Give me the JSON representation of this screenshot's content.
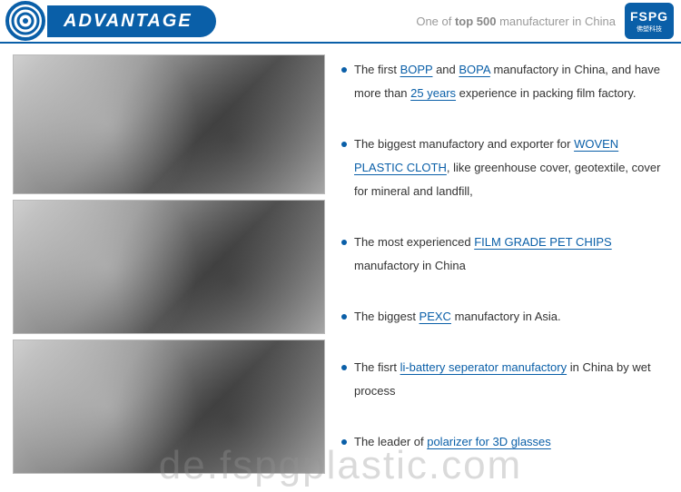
{
  "header": {
    "title": "ADVANTAGE",
    "tagline_prefix": "One of ",
    "tagline_bold": "top 500",
    "tagline_suffix": " manufacturer in China",
    "brand_top": "FSPG",
    "brand_cn": "佛塑科技"
  },
  "colors": {
    "primary": "#0a5fa8",
    "text": "#333333",
    "tagline": "#9a9a9a",
    "border": "#bbbbbb",
    "bg": "#ffffff"
  },
  "bullets": [
    {
      "segments": [
        {
          "t": "The first ",
          "link": false
        },
        {
          "t": "BOPP",
          "link": true
        },
        {
          "t": " and ",
          "link": false
        },
        {
          "t": "BOPA",
          "link": true
        },
        {
          "t": " manufactory in China, and have more than ",
          "link": false
        },
        {
          "t": "25 years",
          "link": true
        },
        {
          "t": " experience in packing film factory.",
          "link": false
        }
      ]
    },
    {
      "segments": [
        {
          "t": "The biggest manufactory and exporter for ",
          "link": false
        },
        {
          "t": "WOVEN PLASTIC CLOTH",
          "link": true
        },
        {
          "t": ", like greenhouse cover, geotextile, cover for mineral and landfill,",
          "link": false
        }
      ]
    },
    {
      "segments": [
        {
          "t": "The most experienced ",
          "link": false
        },
        {
          "t": "FILM GRADE PET CHIPS",
          "link": true
        },
        {
          "t": " manufactory in China",
          "link": false
        }
      ]
    },
    {
      "segments": [
        {
          "t": "The biggest ",
          "link": false
        },
        {
          "t": "PEXC",
          "link": true
        },
        {
          "t": " manufactory in Asia.",
          "link": false
        }
      ]
    },
    {
      "segments": [
        {
          "t": "The fisrt ",
          "link": false
        },
        {
          "t": "li-battery seperator manufactory",
          "link": true
        },
        {
          "t": " in China by wet process",
          "link": false
        }
      ]
    },
    {
      "segments": [
        {
          "t": "The leader of ",
          "link": false
        },
        {
          "t": "polarizer for 3D glasses",
          "link": true
        }
      ]
    }
  ],
  "images": [
    {
      "label": "factory-machine-1"
    },
    {
      "label": "factory-machine-2"
    },
    {
      "label": "factory-lab-3"
    }
  ],
  "watermark": "de.fspgplastic.com"
}
